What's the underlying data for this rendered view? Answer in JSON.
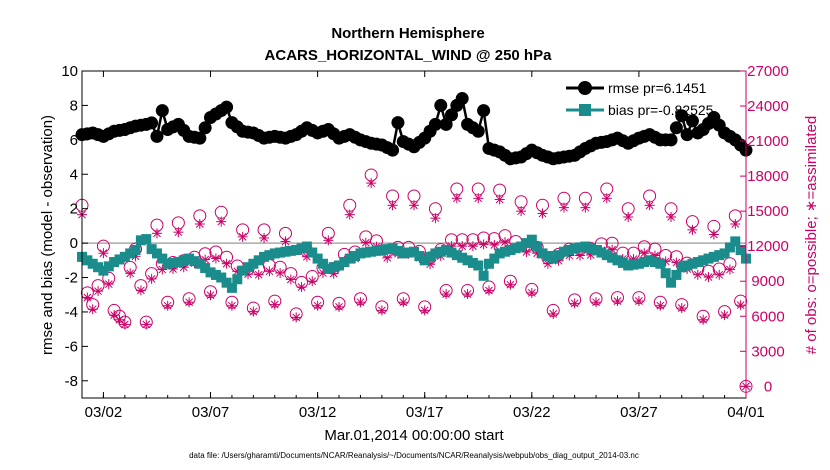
{
  "chart_data": {
    "type": "line",
    "title": "Northern Hemisphere",
    "subtitle": "ACARS_HORIZONTAL_WIND @ 250 hPa",
    "xlabel": "Mar.01,2014 00:00:00 start",
    "ylabel": "rmse and bias (model - observation)",
    "ylabel_right": "# of obs: o=possible; ∗=assimilated",
    "footnote": "data file: /Users/gharamti/Documents/NCAR/Reanalysis/~/Documents/NCAR/Reanalysis/webpub/obs_diag_output_2014-03.nc",
    "xlim": [
      0,
      31
    ],
    "ylim": [
      -9,
      10
    ],
    "ylim_right": [
      -1000,
      27000
    ],
    "x_ticks": [
      1,
      6,
      11,
      16,
      21,
      26,
      31
    ],
    "x_tick_labels": [
      "03/02",
      "03/07",
      "03/12",
      "03/17",
      "03/22",
      "03/27",
      "04/01"
    ],
    "y_ticks": [
      -8,
      -6,
      -4,
      -2,
      0,
      2,
      4,
      6,
      8,
      10
    ],
    "y_tick_labels": [
      "-8",
      "-6",
      "-4",
      "-2",
      "0",
      "2",
      "4",
      "6",
      "8",
      "10"
    ],
    "y_right_ticks": [
      0,
      3000,
      6000,
      9000,
      12000,
      15000,
      18000,
      21000,
      24000,
      27000
    ],
    "y_right_tick_labels": [
      "0",
      "3000",
      "6000",
      "9000",
      "12000",
      "15000",
      "18000",
      "21000",
      "24000",
      "27000"
    ],
    "legend": [
      "rmse pr=6.1451",
      "bias pr=-0.82525"
    ],
    "legend_position": "top-right",
    "colors": {
      "rmse": "#000000",
      "bias": "#1a8c8c",
      "obs": "#cc0066",
      "zero_line": "#aaaaaa"
    },
    "rmse_knots": [
      [
        0,
        6.3
      ],
      [
        0.5,
        6.4
      ],
      [
        1,
        6.2
      ],
      [
        1.5,
        6.5
      ],
      [
        2,
        6.6
      ],
      [
        2.5,
        6.8
      ],
      [
        3,
        6.9
      ],
      [
        3.3,
        7.0
      ],
      [
        3.5,
        6.2
      ],
      [
        3.75,
        7.7
      ],
      [
        4,
        6.6
      ],
      [
        4.5,
        6.9
      ],
      [
        5,
        6.2
      ],
      [
        5.5,
        6.1
      ],
      [
        6,
        7.3
      ],
      [
        6.5,
        7.7
      ],
      [
        6.75,
        7.9
      ],
      [
        7,
        7.0
      ],
      [
        7.5,
        6.5
      ],
      [
        8,
        6.4
      ],
      [
        8.5,
        6.1
      ],
      [
        9,
        6.2
      ],
      [
        9.5,
        6.1
      ],
      [
        10,
        6.3
      ],
      [
        10.5,
        6.7
      ],
      [
        11,
        6.4
      ],
      [
        11.5,
        6.6
      ],
      [
        12,
        6.1
      ],
      [
        12.5,
        6.3
      ],
      [
        13,
        6.0
      ],
      [
        13.5,
        5.8
      ],
      [
        14,
        5.7
      ],
      [
        14.5,
        5.4
      ],
      [
        14.75,
        7.0
      ],
      [
        15,
        5.9
      ],
      [
        15.5,
        5.6
      ],
      [
        16,
        6.1
      ],
      [
        16.5,
        6.9
      ],
      [
        16.75,
        8.0
      ],
      [
        17,
        6.9
      ],
      [
        17.5,
        8.0
      ],
      [
        17.75,
        8.4
      ],
      [
        18,
        6.9
      ],
      [
        18.5,
        6.5
      ],
      [
        18.75,
        7.7
      ],
      [
        19,
        5.5
      ],
      [
        19.5,
        5.3
      ],
      [
        20,
        4.9
      ],
      [
        20.5,
        5.0
      ],
      [
        21,
        5.4
      ],
      [
        21.5,
        5.1
      ],
      [
        22,
        4.9
      ],
      [
        22.5,
        5.0
      ],
      [
        23,
        5.1
      ],
      [
        23.5,
        5.5
      ],
      [
        24,
        5.8
      ],
      [
        24.5,
        5.9
      ],
      [
        25,
        6.1
      ],
      [
        25.5,
        5.8
      ],
      [
        26,
        6.1
      ],
      [
        26.5,
        6.3
      ],
      [
        27,
        6.0
      ],
      [
        27.5,
        6.0
      ],
      [
        28,
        7.4
      ],
      [
        28.25,
        6.3
      ],
      [
        28.5,
        7.1
      ],
      [
        28.75,
        6.4
      ],
      [
        29,
        6.6
      ],
      [
        29.5,
        7.3
      ],
      [
        30,
        6.4
      ],
      [
        30.5,
        6.0
      ],
      [
        31,
        5.4
      ]
    ],
    "bias_knots": [
      [
        0,
        -0.8
      ],
      [
        0.5,
        -1.2
      ],
      [
        1,
        -1.6
      ],
      [
        1.5,
        -1.1
      ],
      [
        2,
        -0.8
      ],
      [
        2.5,
        -0.4
      ],
      [
        2.9,
        0.5
      ],
      [
        3.2,
        -0.3
      ],
      [
        3.5,
        -0.6
      ],
      [
        4,
        -1.2
      ],
      [
        4.5,
        -1.1
      ],
      [
        5,
        -0.9
      ],
      [
        5.5,
        -1.2
      ],
      [
        6,
        -1.7
      ],
      [
        6.5,
        -2.0
      ],
      [
        7,
        -2.6
      ],
      [
        7.5,
        -1.6
      ],
      [
        8,
        -1.2
      ],
      [
        8.5,
        -0.8
      ],
      [
        9,
        -0.6
      ],
      [
        9.5,
        -0.5
      ],
      [
        10,
        -0.4
      ],
      [
        10.5,
        -0.2
      ],
      [
        11,
        -0.9
      ],
      [
        11.5,
        -1.5
      ],
      [
        12,
        -1.3
      ],
      [
        12.5,
        -0.9
      ],
      [
        13,
        -0.6
      ],
      [
        13.5,
        -0.5
      ],
      [
        14,
        -0.4
      ],
      [
        14.5,
        -0.3
      ],
      [
        15,
        -0.6
      ],
      [
        15.5,
        -0.5
      ],
      [
        16,
        -1.0
      ],
      [
        16.5,
        -0.6
      ],
      [
        17,
        -0.4
      ],
      [
        17.5,
        -0.7
      ],
      [
        18,
        -1.0
      ],
      [
        18.5,
        -1.3
      ],
      [
        18.75,
        -1.9
      ],
      [
        19,
        -1.2
      ],
      [
        19.5,
        -0.6
      ],
      [
        20,
        -0.4
      ],
      [
        20.5,
        -0.2
      ],
      [
        21,
        0.2
      ],
      [
        21.5,
        -0.6
      ],
      [
        22,
        -0.9
      ],
      [
        22.5,
        -0.5
      ],
      [
        23,
        -0.3
      ],
      [
        23.5,
        -0.2
      ],
      [
        24,
        -0.4
      ],
      [
        24.5,
        -0.7
      ],
      [
        25,
        -1.0
      ],
      [
        25.5,
        -1.3
      ],
      [
        26,
        -1.2
      ],
      [
        26.5,
        -1.0
      ],
      [
        27,
        -1.2
      ],
      [
        27.5,
        -2.3
      ],
      [
        28,
        -1.4
      ],
      [
        28.5,
        -1.2
      ],
      [
        29,
        -1.0
      ],
      [
        29.5,
        -0.8
      ],
      [
        30,
        -0.6
      ],
      [
        30.5,
        0.1
      ],
      [
        31,
        -0.9
      ]
    ],
    "obs_possible_knots": [
      [
        0,
        15500
      ],
      [
        0.25,
        8000
      ],
      [
        0.6,
        6600
      ],
      [
        1,
        12000
      ],
      [
        1.5,
        6500
      ],
      [
        2,
        5500
      ],
      [
        2.4,
        13000
      ],
      [
        3,
        5500
      ],
      [
        3.5,
        13800
      ],
      [
        4,
        7200
      ],
      [
        4.5,
        14000
      ],
      [
        5,
        7500
      ],
      [
        5.5,
        14600
      ],
      [
        6,
        8100
      ],
      [
        6.5,
        14900
      ],
      [
        7,
        7200
      ],
      [
        7.5,
        13400
      ],
      [
        8,
        6700
      ],
      [
        8.5,
        13400
      ],
      [
        9,
        7300
      ],
      [
        9.5,
        13100
      ],
      [
        10,
        6200
      ],
      [
        10.5,
        11600
      ],
      [
        11,
        7200
      ],
      [
        11.5,
        13100
      ],
      [
        12,
        7100
      ],
      [
        12.5,
        15500
      ],
      [
        13,
        7500
      ],
      [
        13.5,
        18100
      ],
      [
        14,
        6800
      ],
      [
        14.5,
        16300
      ],
      [
        15,
        7500
      ],
      [
        15.5,
        16300
      ],
      [
        16,
        6800
      ],
      [
        16.5,
        15200
      ],
      [
        17,
        8200
      ],
      [
        17.5,
        16900
      ],
      [
        18,
        8200
      ],
      [
        18.5,
        16900
      ],
      [
        19,
        8500
      ],
      [
        19.5,
        16800
      ],
      [
        20,
        9000
      ],
      [
        20.5,
        15800
      ],
      [
        21,
        8300
      ],
      [
        21.5,
        15500
      ],
      [
        22,
        6500
      ],
      [
        22.5,
        16100
      ],
      [
        23,
        7400
      ],
      [
        23.5,
        16100
      ],
      [
        24,
        7500
      ],
      [
        24.5,
        16900
      ],
      [
        25,
        7600
      ],
      [
        25.5,
        15200
      ],
      [
        26,
        7600
      ],
      [
        26.5,
        16300
      ],
      [
        27,
        7200
      ],
      [
        27.5,
        15200
      ],
      [
        28,
        7000
      ],
      [
        28.5,
        14100
      ],
      [
        29,
        6000
      ],
      [
        29.5,
        13700
      ],
      [
        30,
        6400
      ],
      [
        30.5,
        14600
      ],
      [
        31,
        0
      ]
    ],
    "obs_assimilated_knots": [
      [
        0,
        14700
      ],
      [
        0.25,
        7600
      ],
      [
        0.6,
        6200
      ],
      [
        1,
        11400
      ],
      [
        1.5,
        6100
      ],
      [
        2,
        5300
      ],
      [
        2.4,
        12300
      ],
      [
        3,
        5300
      ],
      [
        3.5,
        13100
      ],
      [
        4,
        6900
      ],
      [
        4.5,
        13200
      ],
      [
        5,
        7200
      ],
      [
        5.5,
        13900
      ],
      [
        6,
        7800
      ],
      [
        6.5,
        14100
      ],
      [
        7,
        6900
      ],
      [
        7.5,
        12800
      ],
      [
        8,
        6400
      ],
      [
        8.5,
        12700
      ],
      [
        9,
        7000
      ],
      [
        9.5,
        12400
      ],
      [
        10,
        5900
      ],
      [
        10.5,
        11100
      ],
      [
        11,
        6900
      ],
      [
        11.5,
        12500
      ],
      [
        12,
        6800
      ],
      [
        12.5,
        14700
      ],
      [
        13,
        7200
      ],
      [
        13.5,
        17400
      ],
      [
        14,
        6500
      ],
      [
        14.5,
        15500
      ],
      [
        15,
        7200
      ],
      [
        15.5,
        15500
      ],
      [
        16,
        6500
      ],
      [
        16.5,
        14400
      ],
      [
        17,
        7900
      ],
      [
        17.5,
        16100
      ],
      [
        18,
        7900
      ],
      [
        18.5,
        16100
      ],
      [
        19,
        8200
      ],
      [
        19.5,
        16000
      ],
      [
        20,
        8700
      ],
      [
        20.5,
        15000
      ],
      [
        21,
        8000
      ],
      [
        21.5,
        14800
      ],
      [
        22,
        6200
      ],
      [
        22.5,
        15300
      ],
      [
        23,
        7100
      ],
      [
        23.5,
        15300
      ],
      [
        24,
        7200
      ],
      [
        24.5,
        16100
      ],
      [
        25,
        7300
      ],
      [
        25.5,
        14500
      ],
      [
        26,
        7300
      ],
      [
        26.5,
        15500
      ],
      [
        27,
        6900
      ],
      [
        27.5,
        14500
      ],
      [
        28,
        6700
      ],
      [
        28.5,
        13400
      ],
      [
        29,
        5700
      ],
      [
        29.5,
        13000
      ],
      [
        30,
        6100
      ],
      [
        30.5,
        13900
      ],
      [
        31,
        0
      ]
    ]
  }
}
